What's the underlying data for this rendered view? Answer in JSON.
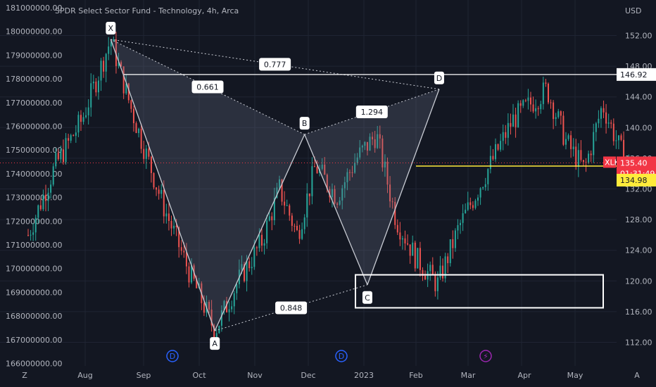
{
  "header": {
    "title": "SPDR Select Sector Fund - Technology, 4h, Arca",
    "currency": "USD"
  },
  "colors": {
    "background": "#131722",
    "grid": "#1f2433",
    "up": "#26a69a",
    "down": "#ef5350",
    "pattern_fill": "#6b7487",
    "pattern_line": "#c9ccd4",
    "target_line": "#ffffff",
    "yellow_line": "#ffeb3b",
    "price_badge": "#f23645",
    "event_blue": "#2962ff",
    "event_purple": "#9c27b0"
  },
  "chart_data": {
    "type": "candlestick",
    "left_axis_ticks": [
      "181000000.00",
      "180000000.00",
      "179000000.00",
      "178000000.00",
      "177000000.00",
      "176000000.00",
      "175000000.00",
      "174000000.00",
      "173000000.00",
      "172000000.00",
      "171000000.00",
      "170000000.00",
      "169000000.00",
      "168000000.00",
      "167000000.00",
      "166000000.00"
    ],
    "right_axis_ticks": [
      "152.00",
      "148.00",
      "144.00",
      "140.00",
      "136.00",
      "132.00",
      "128.00",
      "124.00",
      "120.00",
      "116.00",
      "112.00"
    ],
    "right_axis_values": [
      152,
      148,
      144,
      140,
      136,
      132,
      128,
      124,
      120,
      116,
      112
    ],
    "x_ticks": [
      "Z",
      "Aug",
      "Sep",
      "Oct",
      "Nov",
      "Dec",
      "2023",
      "Feb",
      "Mar",
      "Apr",
      "May",
      "A"
    ],
    "pattern": {
      "points": [
        {
          "label": "X",
          "date": "2022-08-16",
          "price": 151.5
        },
        {
          "label": "A",
          "date": "2022-10-13",
          "price": 113.5
        },
        {
          "label": "B",
          "date": "2022-12-02",
          "price": 139.1
        },
        {
          "label": "C",
          "date": "2023-01-06",
          "price": 119.5
        },
        {
          "label": "D",
          "date": "2023-02-15",
          "price": 145.0
        }
      ],
      "ratios": [
        {
          "label": "0.777",
          "from": "X",
          "to": "D"
        },
        {
          "label": "0.661",
          "from": "X",
          "to": "B"
        },
        {
          "label": "1.294",
          "from": "B",
          "to": "D"
        },
        {
          "label": "0.848",
          "from": "A",
          "to": "C"
        }
      ]
    },
    "target_level": "146.92",
    "support_level": "134.98",
    "last_price": "135.40",
    "countdown": "01:31:49",
    "symbol": "XLK",
    "box_range": [
      116.5,
      120.8
    ]
  }
}
